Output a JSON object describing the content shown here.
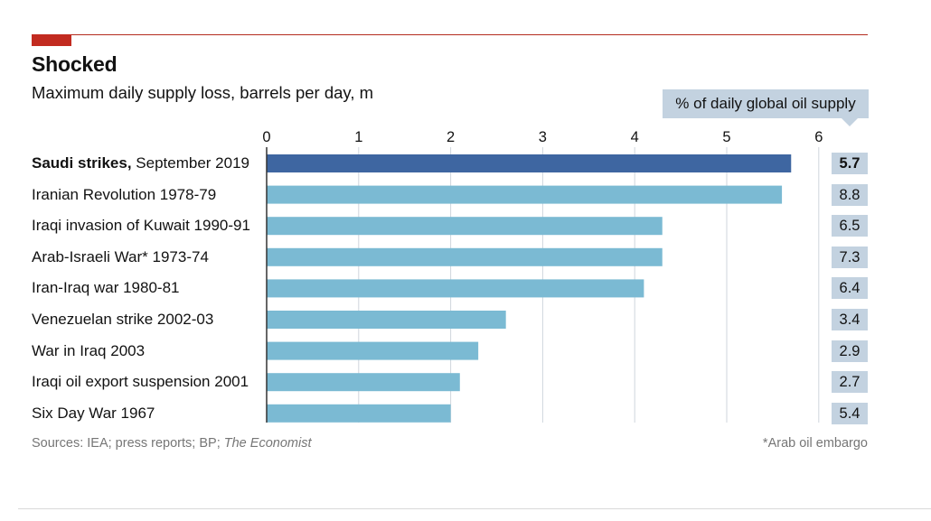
{
  "chart_data": {
    "type": "bar",
    "orientation": "horizontal",
    "title": "Shocked",
    "subtitle": "Maximum daily supply loss, barrels per day, m",
    "categories": [
      {
        "name": "Saudi strikes,",
        "period": "September 2019",
        "bold": true
      },
      {
        "name": "Iranian Revolution",
        "period": "1978-79",
        "bold": false
      },
      {
        "name": "Iraqi invasion of Kuwait",
        "period": "1990-91",
        "bold": false
      },
      {
        "name": "Arab-Israeli War*",
        "period": "1973-74",
        "bold": false
      },
      {
        "name": "Iran-Iraq war",
        "period": "1980-81",
        "bold": false
      },
      {
        "name": "Venezuelan strike",
        "period": "2002-03",
        "bold": false
      },
      {
        "name": "War in Iraq",
        "period": "2003",
        "bold": false
      },
      {
        "name": "Iraqi oil export suspension",
        "period": "2001",
        "bold": false
      },
      {
        "name": "Six Day War",
        "period": "1967",
        "bold": false
      }
    ],
    "values": [
      5.7,
      5.6,
      4.3,
      4.3,
      4.1,
      2.6,
      2.3,
      2.1,
      2.0
    ],
    "xlim": [
      0,
      6
    ],
    "x_ticks": [
      "0",
      "1",
      "2",
      "3",
      "4",
      "5",
      "6"
    ],
    "grid": true,
    "highlight_index": 0,
    "secondary_column": {
      "label": "% of daily global oil supply",
      "values": [
        "5.7",
        "8.8",
        "6.5",
        "7.3",
        "6.4",
        "3.4",
        "2.9",
        "2.7",
        "5.4"
      ]
    }
  },
  "footer": {
    "sources_prefix": "Sources: IEA; press reports; BP;",
    "sources_italic": "The Economist",
    "note": "*Arab oil embargo"
  },
  "colors": {
    "highlight_bar": "#3e66a1",
    "bar": "#7bbad3",
    "tag_bg": "#c3d2e0",
    "accent_red": "#c22b20",
    "gridline": "#cfd6dd",
    "axis": "#333333"
  }
}
